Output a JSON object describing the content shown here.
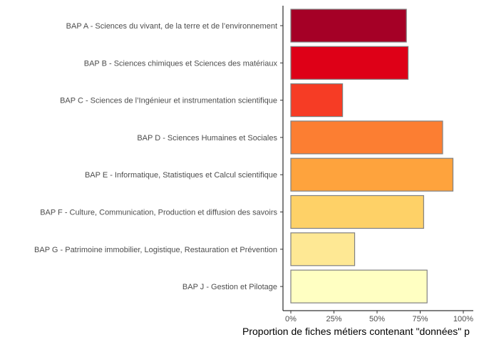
{
  "chart_data": {
    "type": "bar",
    "orientation": "horizontal",
    "categories": [
      "BAP A - Sciences du vivant, de la terre et de l’environnement",
      "BAP B - Sciences chimiques et Sciences des matériaux",
      "BAP C - Sciences de l’Ingénieur et  instrumentation scientifique",
      "BAP D - Sciences Humaines et Sociales",
      "BAP E - Informatique, Statistiques et Calcul scientifique",
      "BAP F - Culture, Communication, Production et diffusion des savoirs",
      "BAP G - Patrimoine immobilier, Logistique, Restauration et Prévention",
      "BAP J - Gestion et Pilotage"
    ],
    "values": [
      0.67,
      0.68,
      0.3,
      0.88,
      0.94,
      0.77,
      0.37,
      0.79
    ],
    "colors": [
      "#A50026",
      "#DE0017",
      "#F63C25",
      "#FC7E32",
      "#FEA33D",
      "#FED167",
      "#FEE894",
      "#FFFFC2"
    ],
    "bar_outline_color": "#808080",
    "title": "",
    "xlabel": "Proportion de fiches métiers contenant \"données\" p",
    "ylabel": "",
    "xlim": [
      0,
      1
    ],
    "x_ticks": [
      0,
      0.25,
      0.5,
      0.75,
      1.0
    ],
    "x_tick_labels": [
      "0%",
      "25%",
      "50%",
      "75%",
      "100%"
    ],
    "grid": false,
    "legend": "none"
  }
}
